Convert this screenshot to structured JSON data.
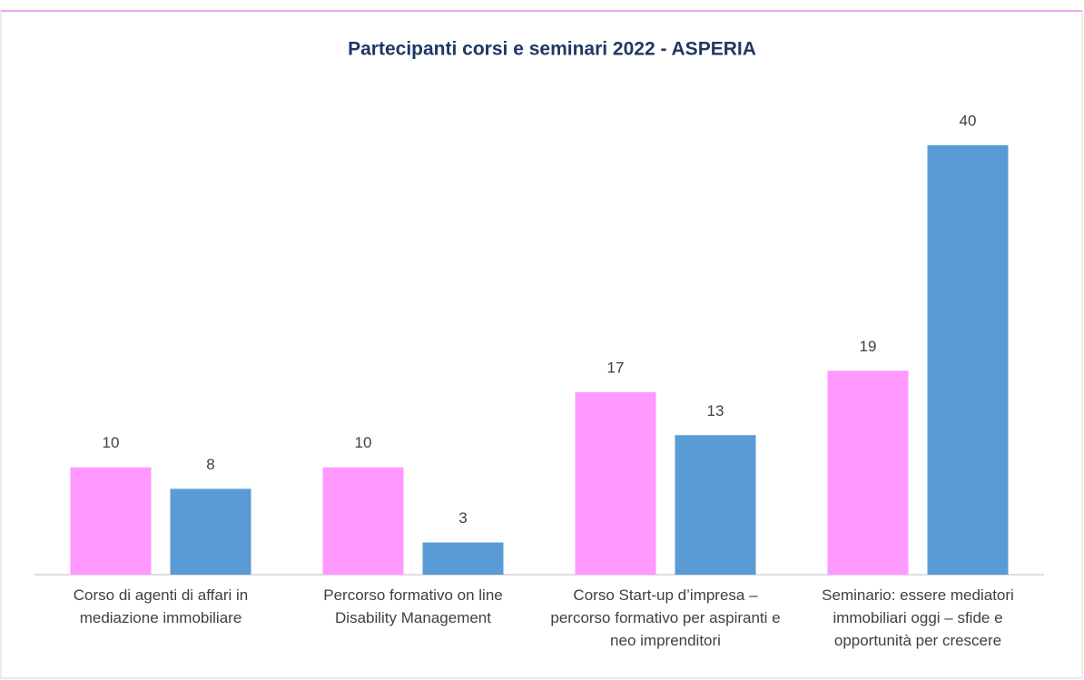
{
  "chart_data": {
    "type": "bar",
    "title": "Partecipanti corsi e seminari 2022 - ASPERIA",
    "categories": [
      "Corso di agenti di affari in mediazione immobiliare",
      "Percorso formativo on line Disability Management",
      "Corso Start-up d’impresa – percorso formativo per aspiranti e neo imprenditori",
      "Seminario: essere mediatori immobiliari oggi – sfide e opportunità per crescere"
    ],
    "series": [
      {
        "color": "#ff99ff",
        "values": [
          10,
          10,
          17,
          19
        ]
      },
      {
        "color": "#5b9bd5",
        "values": [
          8,
          3,
          13,
          40
        ]
      }
    ],
    "ylim": [
      0,
      40
    ]
  }
}
